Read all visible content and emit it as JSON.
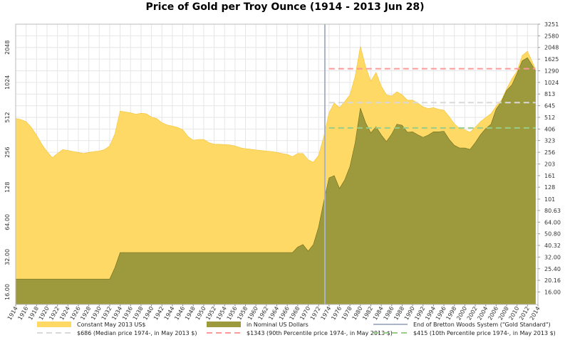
{
  "title": "Price of Gold per Troy Ounce (1914 - 2013 Jun 28)",
  "chart_data": {
    "type": "area",
    "title": "Price of Gold per Troy Ounce (1914 - 2013 Jun 28)",
    "x_range": [
      1914,
      2014
    ],
    "x_ticks": [
      1914,
      1916,
      1918,
      1920,
      1922,
      1924,
      1926,
      1928,
      1930,
      1932,
      1934,
      1936,
      1938,
      1940,
      1942,
      1944,
      1946,
      1948,
      1950,
      1952,
      1954,
      1956,
      1958,
      1960,
      1962,
      1964,
      1966,
      1968,
      1970,
      1972,
      1974,
      1976,
      1978,
      1980,
      1982,
      1984,
      1986,
      1988,
      1990,
      1992,
      1994,
      1996,
      1998,
      2000,
      2002,
      2004,
      2006,
      2008,
      2010,
      2012,
      2014
    ],
    "y_scale": "log2",
    "y_range": [
      12.5,
      3251
    ],
    "y_left_ticks": [
      "16.00",
      "32.00",
      "64.00",
      "128",
      "256",
      "512",
      "1024",
      "2048"
    ],
    "y_right_ticks": [
      "3251",
      "2580",
      "2048",
      "1625",
      "1290",
      "1024",
      "813",
      "645",
      "512",
      "406",
      "323",
      "256",
      "203",
      "161",
      "128",
      "101",
      "80.63",
      "64.00",
      "50.80",
      "40.32",
      "32.00",
      "25.40",
      "20.16",
      "16.00"
    ],
    "grid": true,
    "series": [
      {
        "name": "Constant May 2013 US$",
        "color": "#ffd966",
        "x": [
          1914,
          1915,
          1916,
          1917,
          1918,
          1919,
          1920,
          1921,
          1922,
          1923,
          1924,
          1925,
          1926,
          1927,
          1928,
          1929,
          1930,
          1931,
          1932,
          1933,
          1934,
          1935,
          1936,
          1937,
          1938,
          1939,
          1940,
          1941,
          1942,
          1943,
          1944,
          1945,
          1946,
          1947,
          1948,
          1949,
          1950,
          1951,
          1952,
          1953,
          1954,
          1955,
          1956,
          1957,
          1958,
          1959,
          1960,
          1961,
          1962,
          1963,
          1964,
          1965,
          1966,
          1967,
          1968,
          1969,
          1970,
          1971,
          1972,
          1973,
          1974,
          1975,
          1976,
          1977,
          1978,
          1979,
          1980,
          1981,
          1982,
          1983,
          1984,
          1985,
          1986,
          1987,
          1988,
          1989,
          1990,
          1991,
          1992,
          1993,
          1994,
          1995,
          1996,
          1997,
          1998,
          1999,
          2000,
          2001,
          2002,
          2003,
          2004,
          2005,
          2006,
          2007,
          2008,
          2009,
          2010,
          2011,
          2012,
          2013.5
        ],
        "values": [
          500,
          490,
          470,
          420,
          360,
          300,
          260,
          230,
          250,
          270,
          265,
          260,
          255,
          250,
          255,
          260,
          262,
          270,
          290,
          370,
          580,
          570,
          560,
          545,
          555,
          550,
          515,
          500,
          460,
          440,
          430,
          420,
          400,
          350,
          325,
          330,
          330,
          310,
          300,
          300,
          298,
          296,
          290,
          280,
          275,
          272,
          268,
          265,
          262,
          260,
          255,
          250,
          245,
          235,
          250,
          250,
          220,
          210,
          240,
          350,
          560,
          680,
          620,
          700,
          800,
          1150,
          2100,
          1400,
          1050,
          1250,
          950,
          800,
          780,
          850,
          800,
          720,
          720,
          680,
          630,
          610,
          620,
          600,
          590,
          520,
          450,
          410,
          400,
          380,
          420,
          470,
          510,
          550,
          640,
          720,
          900,
          1100,
          1280,
          1750,
          1900,
          1350
        ]
      },
      {
        "name": "in Nominal US Dollars",
        "color": "#9c9a3c",
        "x": [
          1914,
          1915,
          1916,
          1917,
          1918,
          1919,
          1920,
          1921,
          1922,
          1923,
          1924,
          1925,
          1926,
          1927,
          1928,
          1929,
          1930,
          1931,
          1932,
          1933,
          1934,
          1935,
          1936,
          1937,
          1938,
          1939,
          1940,
          1941,
          1942,
          1943,
          1944,
          1945,
          1946,
          1947,
          1948,
          1949,
          1950,
          1951,
          1952,
          1953,
          1954,
          1955,
          1956,
          1957,
          1958,
          1959,
          1960,
          1961,
          1962,
          1963,
          1964,
          1965,
          1966,
          1967,
          1968,
          1969,
          1970,
          1971,
          1972,
          1973,
          1974,
          1975,
          1976,
          1977,
          1978,
          1979,
          1980,
          1981,
          1982,
          1983,
          1984,
          1985,
          1986,
          1987,
          1988,
          1989,
          1990,
          1991,
          1992,
          1993,
          1994,
          1995,
          1996,
          1997,
          1998,
          1999,
          2000,
          2001,
          2002,
          2003,
          2004,
          2005,
          2006,
          2007,
          2008,
          2009,
          2010,
          2011,
          2012,
          2013.5
        ],
        "values": [
          20.67,
          20.67,
          20.67,
          20.67,
          20.67,
          20.67,
          20.67,
          20.67,
          20.67,
          20.67,
          20.67,
          20.67,
          20.67,
          20.67,
          20.67,
          20.67,
          20.67,
          20.67,
          20.67,
          26,
          35,
          35,
          35,
          35,
          35,
          35,
          35,
          35,
          35,
          35,
          35,
          35,
          35,
          35,
          35,
          35,
          35,
          35,
          35,
          35,
          35,
          35,
          35,
          35,
          35,
          35,
          35,
          35,
          35,
          35,
          35,
          35,
          35,
          35,
          39,
          41,
          36,
          41,
          58,
          97,
          154,
          161,
          125,
          148,
          193,
          307,
          615,
          460,
          376,
          424,
          361,
          317,
          368,
          447,
          437,
          381,
          384,
          362,
          344,
          360,
          384,
          384,
          388,
          331,
          294,
          279,
          279,
          271,
          310,
          363,
          409,
          445,
          604,
          695,
          872,
          972,
          1225,
          1572,
          1669,
          1300
        ]
      }
    ],
    "reference_lines": [
      {
        "label": "$686 (Median price 1974-, in May 2013 $)",
        "value": 686,
        "color": "#d9d9d9",
        "style": "dashed"
      },
      {
        "label": "$1343 (90th Percentile price 1974-, in May 2013 $)",
        "value": 1343,
        "color": "#ff9999",
        "style": "dashed"
      },
      {
        "label": "$415 (10th Percentile price 1974-, in May 2013 $)",
        "value": 415,
        "color": "#99cc88",
        "style": "dashed"
      }
    ],
    "vertical_marker": {
      "label": "End of Bretton Woods System (\"Gold Standard\")",
      "x": 1973.2,
      "color": "#a8b4c8"
    },
    "legend_position": "bottom",
    "ref_start_x": 1974
  },
  "legend": [
    {
      "label": "Constant May 2013 US$",
      "color": "#ffd966",
      "kind": "area"
    },
    {
      "label": "in Nominal US Dollars",
      "color": "#9c9a3c",
      "kind": "area"
    },
    {
      "label": "End of Bretton Woods System (\"Gold Standard\")",
      "color": "#a8b4c8",
      "kind": "line"
    },
    {
      "label": "$686 (Median price 1974-, in May 2013 $)",
      "color": "#d9d9d9",
      "kind": "dash"
    },
    {
      "label": "$1343 (90th Percentile price 1974-, in May 2013 $)",
      "color": "#ff9999",
      "kind": "dash"
    },
    {
      "label": "$415 (10th Percentile price 1974-, in May 2013 $)",
      "color": "#99cc88",
      "kind": "dash"
    }
  ]
}
